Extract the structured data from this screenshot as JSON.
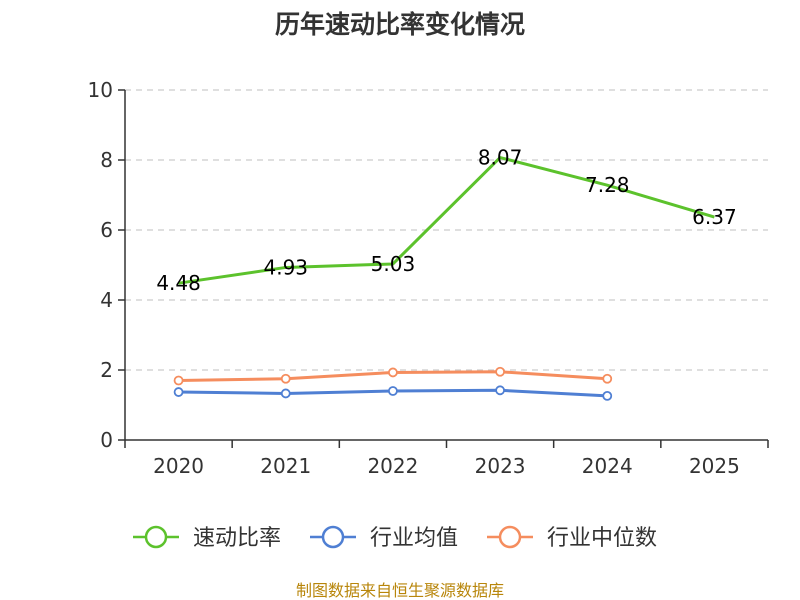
{
  "chart_data": {
    "type": "line",
    "title": "历年速动比率变化情况",
    "categories": [
      "2020",
      "2021",
      "2022",
      "2023",
      "2024",
      "2025"
    ],
    "ylim": [
      0,
      10
    ],
    "yticks": [
      0,
      2,
      4,
      6,
      8,
      10
    ],
    "grid": true,
    "legend_position": "bottom",
    "series": [
      {
        "name": "速动比率",
        "color": "#5cc22c",
        "values": [
          4.48,
          4.93,
          5.03,
          8.07,
          7.28,
          6.37
        ],
        "labels": [
          "4.48",
          "4.93",
          "5.03",
          "8.07",
          "7.28",
          "6.37"
        ],
        "show_labels": true,
        "show_markers": false
      },
      {
        "name": "行业均值",
        "color": "#4f7fd3",
        "values": [
          1.37,
          1.33,
          1.4,
          1.42,
          1.26,
          null
        ],
        "show_labels": false,
        "show_markers": true
      },
      {
        "name": "行业中位数",
        "color": "#f58d5e",
        "values": [
          1.7,
          1.75,
          1.93,
          1.95,
          1.75,
          null
        ],
        "show_labels": false,
        "show_markers": true
      }
    ],
    "source": "制图数据来自恒生聚源数据库"
  }
}
